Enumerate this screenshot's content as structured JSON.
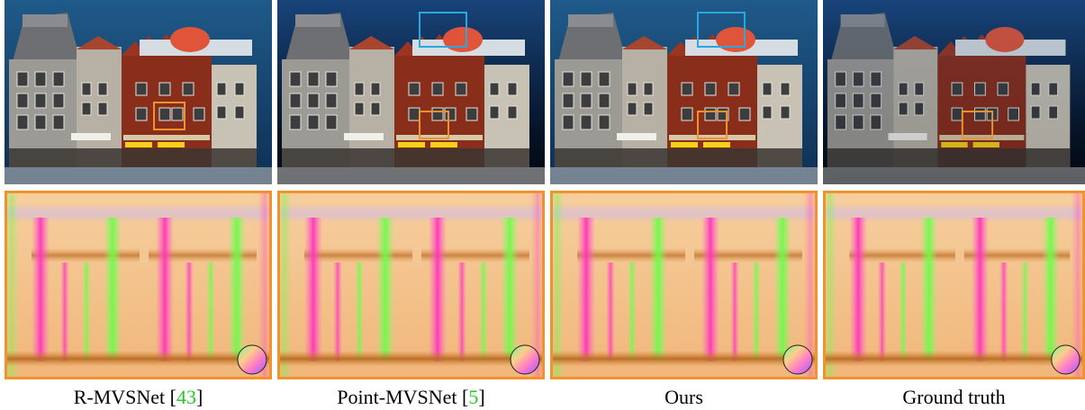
{
  "figure": {
    "columns": [
      {
        "method": "R-MVSNet",
        "ref_open": " [",
        "ref": "43",
        "ref_close": "]",
        "building_bg": "dark-blue"
      },
      {
        "method": "Point-MVSNet",
        "ref_open": " [",
        "ref": "5",
        "ref_close": "]",
        "building_bg": "black-blue"
      },
      {
        "method": "Ours",
        "ref_open": "",
        "ref": "",
        "ref_close": "",
        "building_bg": "dark-blue"
      },
      {
        "method": "Ground truth",
        "ref_open": "",
        "ref": "",
        "ref_close": "",
        "building_bg": "black-blue"
      }
    ],
    "colors": {
      "highlight_orange": "#f0922e",
      "highlight_blue": "#2aa6e0",
      "reference_link": "#22cc22",
      "normal_map_base": "#f4c48c",
      "bg_dark_blue": "#1c4f7c",
      "bg_black_blue": "#0b1e3a"
    }
  }
}
